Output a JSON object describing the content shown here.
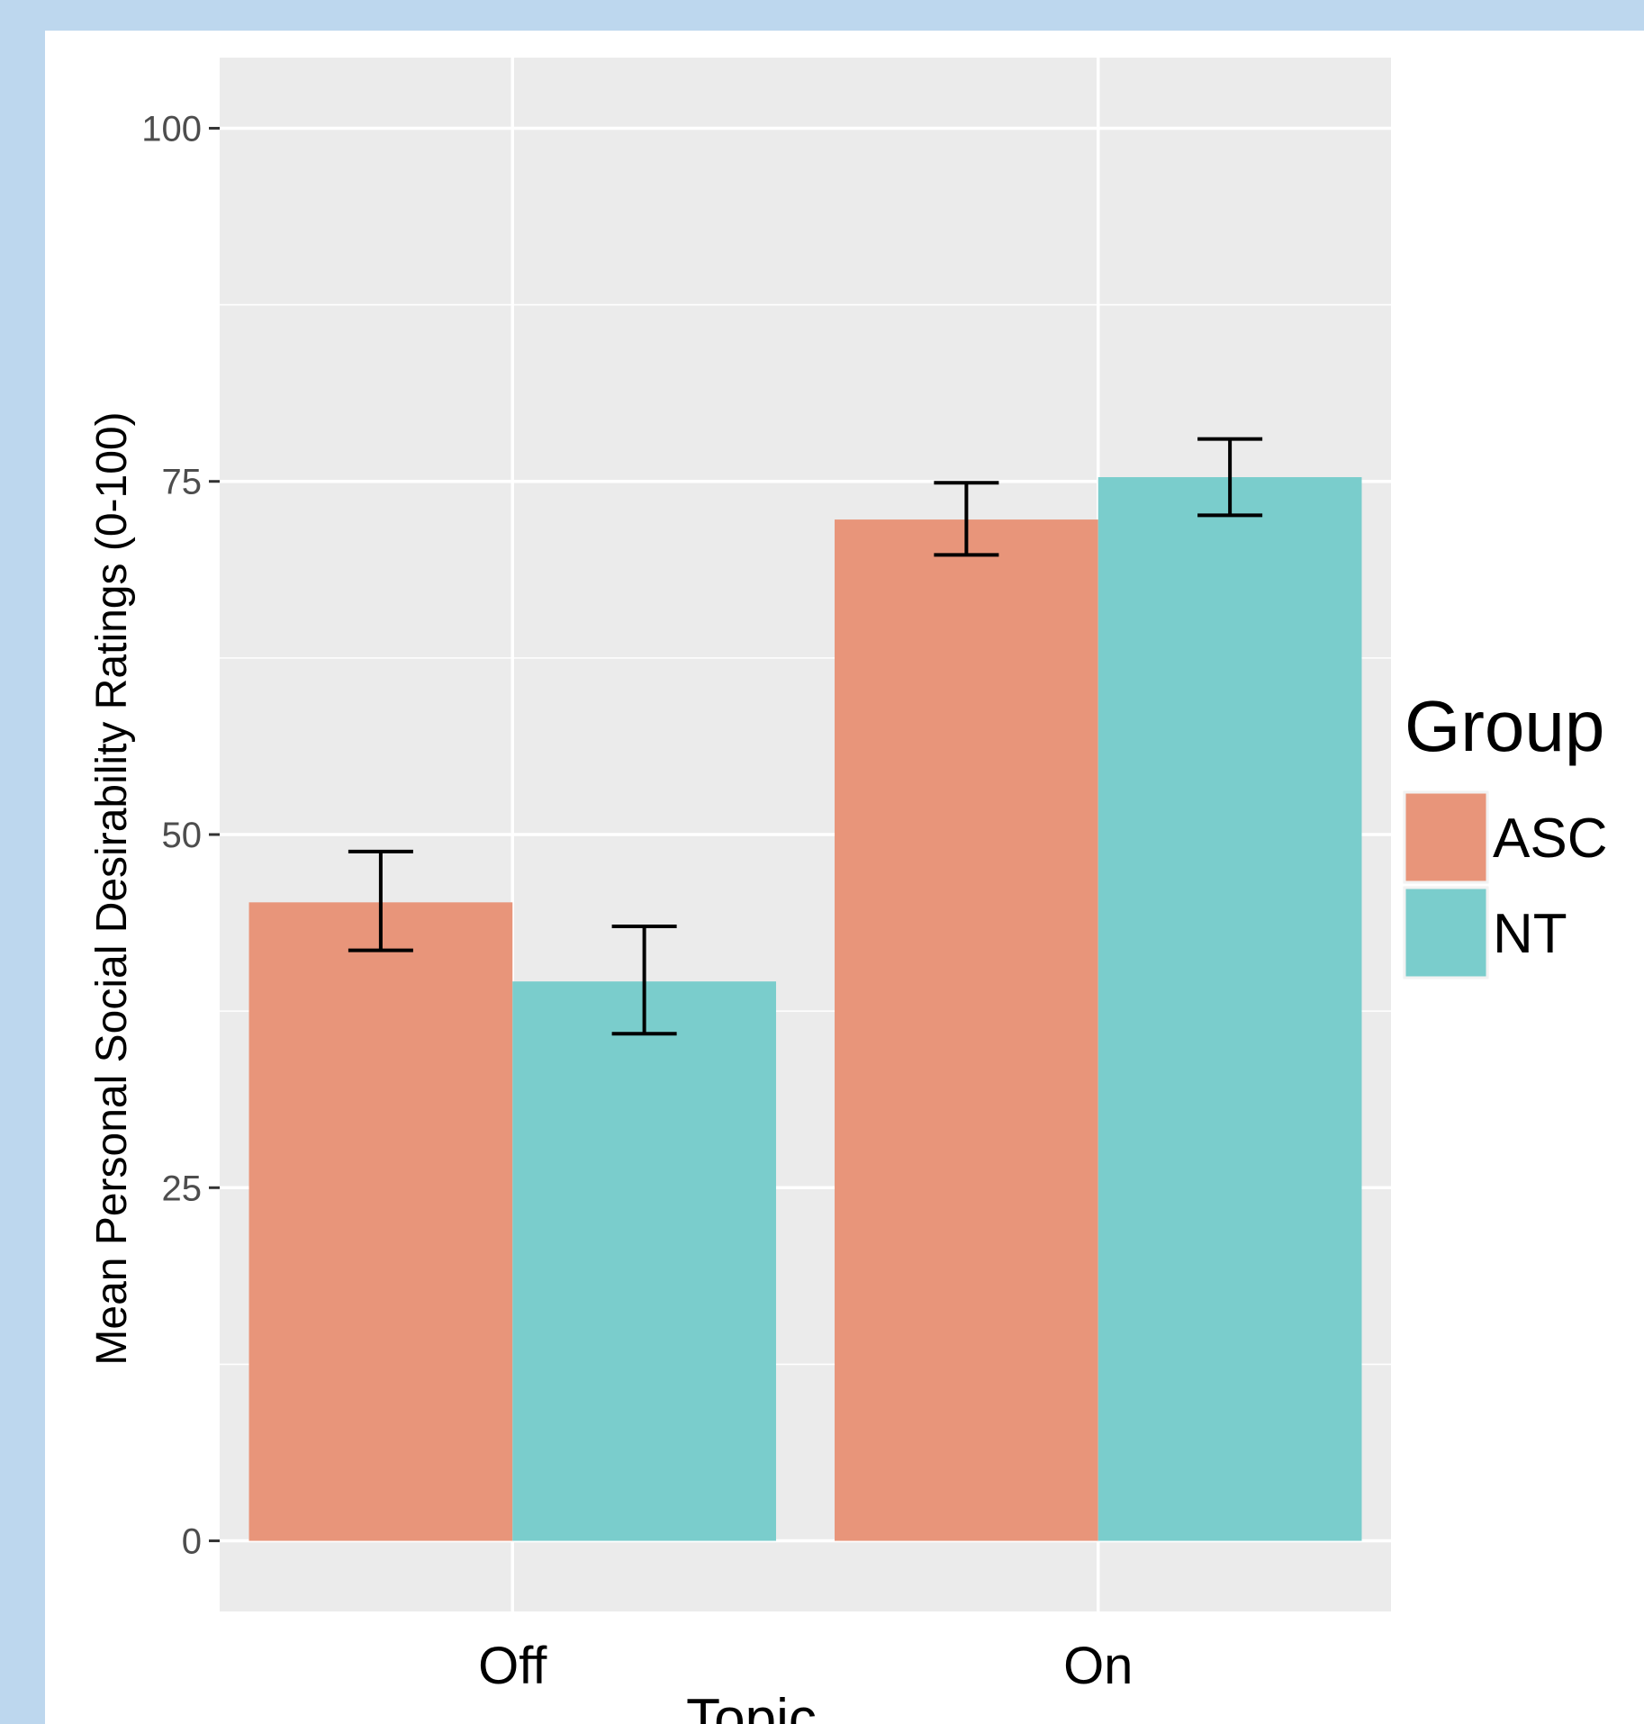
{
  "chart_data": {
    "type": "bar",
    "categories": [
      "Off",
      "On"
    ],
    "series": [
      {
        "name": "ASC",
        "color": "#e8957a",
        "values": [
          45.2,
          72.3
        ],
        "error_low": [
          41.8,
          69.8
        ],
        "error_high": [
          48.8,
          74.9
        ]
      },
      {
        "name": "NT",
        "color": "#7acdcc",
        "values": [
          39.6,
          75.3
        ],
        "error_low": [
          35.9,
          72.6
        ],
        "error_high": [
          43.5,
          78.0
        ]
      }
    ],
    "xlabel": "Topic",
    "ylabel": "Mean Personal Social Desirability Ratings (0-100)",
    "ylim": [
      -5,
      105
    ],
    "yticks": [
      "0",
      "25",
      "50",
      "75",
      "100"
    ],
    "legend_title": "Group",
    "legend_position": "right",
    "grid": true,
    "colors": {
      "panel": "#ebebeb",
      "grid": "#ffffff",
      "background": "#bdd7ee"
    }
  }
}
